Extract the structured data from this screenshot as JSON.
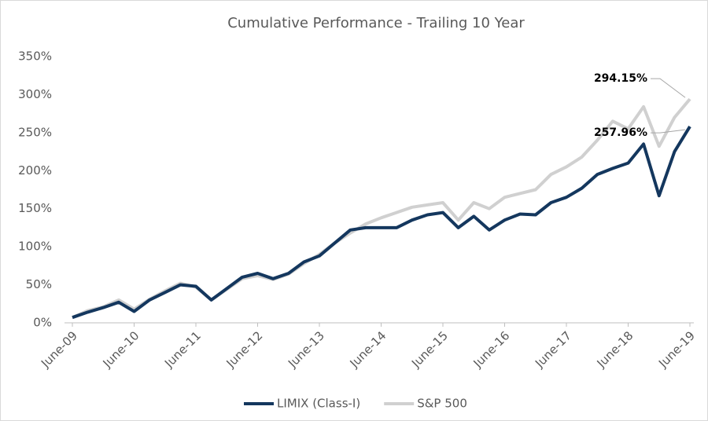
{
  "chart_data": {
    "type": "line",
    "title": "Cumulative Performance - Trailing 10 Year",
    "categories": [
      "June-09",
      null,
      null,
      null,
      "June-10",
      null,
      null,
      null,
      "June-11",
      null,
      null,
      null,
      "June-12",
      null,
      null,
      null,
      "June-13",
      null,
      null,
      null,
      "June-14",
      null,
      null,
      null,
      "June-15",
      null,
      null,
      null,
      "June-16",
      null,
      null,
      null,
      "June-17",
      null,
      null,
      null,
      "June-18",
      null,
      null,
      null,
      "June-19"
    ],
    "series": [
      {
        "name": "LIMIX (Class-I)",
        "color": "#14375e",
        "values": [
          7,
          14,
          20,
          27,
          15,
          30,
          40,
          50,
          48,
          30,
          45,
          60,
          65,
          58,
          65,
          80,
          88,
          105,
          122,
          125,
          125,
          125,
          135,
          142,
          145,
          125,
          140,
          122,
          135,
          143,
          142,
          158,
          165,
          177,
          195,
          203,
          210,
          235,
          167,
          225,
          257.96
        ],
        "value_labels": [
          null,
          null,
          null,
          null,
          null,
          null,
          null,
          null,
          null,
          null,
          null,
          null,
          null,
          null,
          null,
          null,
          null,
          null,
          null,
          null,
          null,
          null,
          null,
          null,
          null,
          null,
          null,
          null,
          null,
          null,
          null,
          null,
          null,
          null,
          null,
          null,
          null,
          null,
          null,
          null,
          "257.96%"
        ]
      },
      {
        "name": "S&P 500",
        "color": "#d0d0d0",
        "values": [
          7,
          16,
          21,
          30,
          18,
          31,
          42,
          52,
          47,
          30,
          44,
          58,
          62,
          57,
          64,
          78,
          90,
          105,
          118,
          130,
          138,
          145,
          152,
          155,
          158,
          135,
          158,
          150,
          165,
          170,
          175,
          195,
          205,
          218,
          240,
          265,
          255,
          284,
          232,
          270,
          294.15
        ],
        "value_labels": [
          null,
          null,
          null,
          null,
          null,
          null,
          null,
          null,
          null,
          null,
          null,
          null,
          null,
          null,
          null,
          null,
          null,
          null,
          null,
          null,
          null,
          null,
          null,
          null,
          null,
          null,
          null,
          null,
          null,
          null,
          null,
          null,
          null,
          null,
          null,
          null,
          null,
          null,
          null,
          null,
          "294.15%"
        ]
      }
    ],
    "ylim": [
      0,
      350
    ],
    "yticks": [
      {
        "value": 0,
        "label": "0%"
      },
      {
        "value": 50,
        "label": "50%"
      },
      {
        "value": 100,
        "label": "100%"
      },
      {
        "value": 150,
        "label": "150%"
      },
      {
        "value": 200,
        "label": "200%"
      },
      {
        "value": 250,
        "label": "250%"
      },
      {
        "value": 300,
        "label": "300%"
      },
      {
        "value": 350,
        "label": "350%"
      }
    ],
    "grid": false,
    "legend": "bottom"
  }
}
